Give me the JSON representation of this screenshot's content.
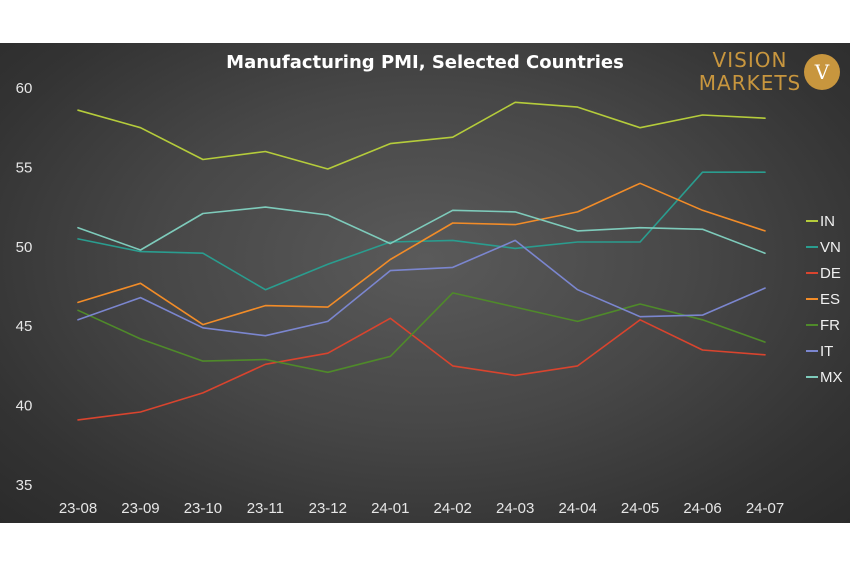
{
  "chart_data": {
    "type": "line",
    "title": "Manufacturing PMI, Selected Countries",
    "categories": [
      "23-08",
      "23-09",
      "23-10",
      "23-11",
      "23-12",
      "24-01",
      "24-02",
      "24-03",
      "24-04",
      "24-05",
      "24-06",
      "24-07"
    ],
    "ylim": [
      35,
      60
    ],
    "yticks": [
      35,
      40,
      45,
      50,
      55,
      60
    ],
    "grid": false,
    "legend_position": "right",
    "series": [
      {
        "name": "IN",
        "color": "#b5cc3b",
        "values": [
          58.6,
          57.5,
          55.5,
          56.0,
          54.9,
          56.5,
          56.9,
          59.1,
          58.8,
          57.5,
          58.3,
          58.1
        ]
      },
      {
        "name": "VN",
        "color": "#2a9d8f",
        "values": [
          50.5,
          49.7,
          49.6,
          47.3,
          48.9,
          50.3,
          50.4,
          49.9,
          50.3,
          50.3,
          54.7,
          54.7
        ]
      },
      {
        "name": "DE",
        "color": "#d9442e",
        "values": [
          39.1,
          39.6,
          40.8,
          42.6,
          43.3,
          45.5,
          42.5,
          41.9,
          42.5,
          45.4,
          43.5,
          43.2
        ]
      },
      {
        "name": "ES",
        "color": "#f28c28",
        "values": [
          46.5,
          47.7,
          45.1,
          46.3,
          46.2,
          49.2,
          51.5,
          51.4,
          52.2,
          54.0,
          52.3,
          51.0
        ]
      },
      {
        "name": "FR",
        "color": "#4f8a2a",
        "values": [
          46.0,
          44.2,
          42.8,
          42.9,
          42.1,
          43.1,
          47.1,
          46.2,
          45.3,
          46.4,
          45.4,
          44.0
        ]
      },
      {
        "name": "IT",
        "color": "#7b86cf",
        "values": [
          45.4,
          46.8,
          44.9,
          44.4,
          45.3,
          48.5,
          48.7,
          50.4,
          47.3,
          45.6,
          45.7,
          47.4
        ]
      },
      {
        "name": "MX",
        "color": "#7ecbbb",
        "values": [
          51.2,
          49.8,
          52.1,
          52.5,
          52.0,
          50.2,
          52.3,
          52.2,
          51.0,
          51.2,
          51.1,
          49.6
        ]
      }
    ]
  },
  "logo": {
    "line1": "VISION",
    "line2": "MARKETS",
    "badge": "V",
    "color": "#c8963e"
  }
}
